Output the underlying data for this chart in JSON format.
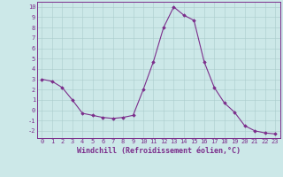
{
  "x": [
    0,
    1,
    2,
    3,
    4,
    5,
    6,
    7,
    8,
    9,
    10,
    11,
    12,
    13,
    14,
    15,
    16,
    17,
    18,
    19,
    20,
    21,
    22,
    23
  ],
  "y": [
    3.0,
    2.8,
    2.2,
    1.0,
    -0.3,
    -0.5,
    -0.7,
    -0.8,
    -0.7,
    -0.5,
    2.0,
    4.7,
    8.0,
    10.0,
    9.2,
    8.7,
    4.7,
    2.2,
    0.7,
    -0.2,
    -1.5,
    -2.0,
    -2.2,
    -2.3
  ],
  "line_color": "#7b2d8b",
  "marker": "D",
  "marker_size": 1.8,
  "bg_color": "#cce8e8",
  "grid_color": "#aacccc",
  "xlabel": "Windchill (Refroidissement éolien,°C)",
  "xlabel_color": "#7b2d8b",
  "tick_color": "#7b2d8b",
  "spine_color": "#7b2d8b",
  "ylim": [
    -2.7,
    10.5
  ],
  "xlim": [
    -0.5,
    23.5
  ],
  "yticks": [
    -2,
    -1,
    0,
    1,
    2,
    3,
    4,
    5,
    6,
    7,
    8,
    9,
    10
  ],
  "xticks": [
    0,
    1,
    2,
    3,
    4,
    5,
    6,
    7,
    8,
    9,
    10,
    11,
    12,
    13,
    14,
    15,
    16,
    17,
    18,
    19,
    20,
    21,
    22,
    23
  ],
  "tick_fontsize": 5.0,
  "xlabel_fontsize": 6.0,
  "linewidth": 0.8
}
